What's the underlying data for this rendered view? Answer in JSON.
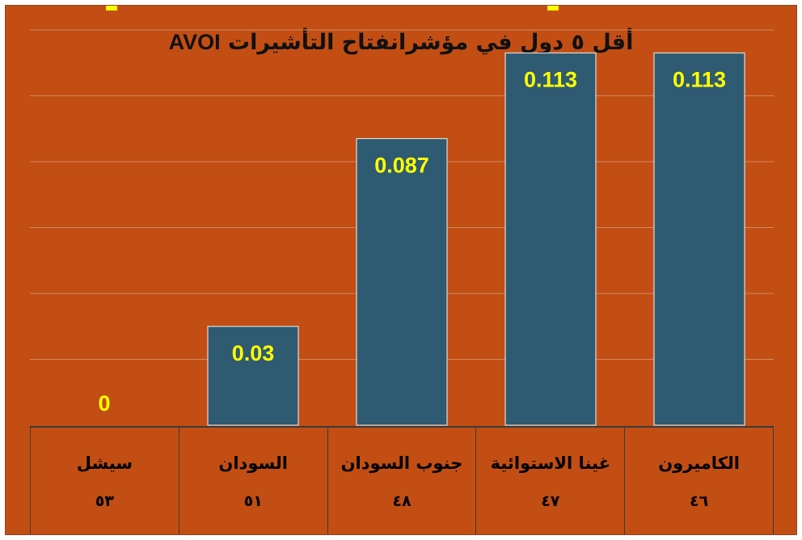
{
  "title": {
    "arabic": "أقل ٥ دول في مؤشرانفتاح التأشيرات",
    "english": "AVOI"
  },
  "colors": {
    "background": "#C24E14",
    "bar": "#2E5A72",
    "data_label": "#FFFF00",
    "grid": "#D08A62"
  },
  "chart_data": {
    "type": "bar",
    "title": "أقل ٥ دول في مؤشرانفتاح التأشيرات AVOI",
    "categories": [
      "سيشل",
      "السودان",
      "جنوب السودان",
      "غينا الاستوائية",
      "الكاميرون"
    ],
    "ranks": [
      "٥٣",
      "٥١",
      "٤٨",
      "٤٧",
      "٤٦"
    ],
    "values": [
      0,
      0.03,
      0.087,
      0.113,
      0.113
    ],
    "data_labels": [
      "0",
      "0.03",
      "0.087",
      "0.113",
      "0.113"
    ],
    "xlabel": "",
    "ylabel": "",
    "ylim": [
      0,
      0.12
    ],
    "grid": true,
    "legend": "none"
  }
}
